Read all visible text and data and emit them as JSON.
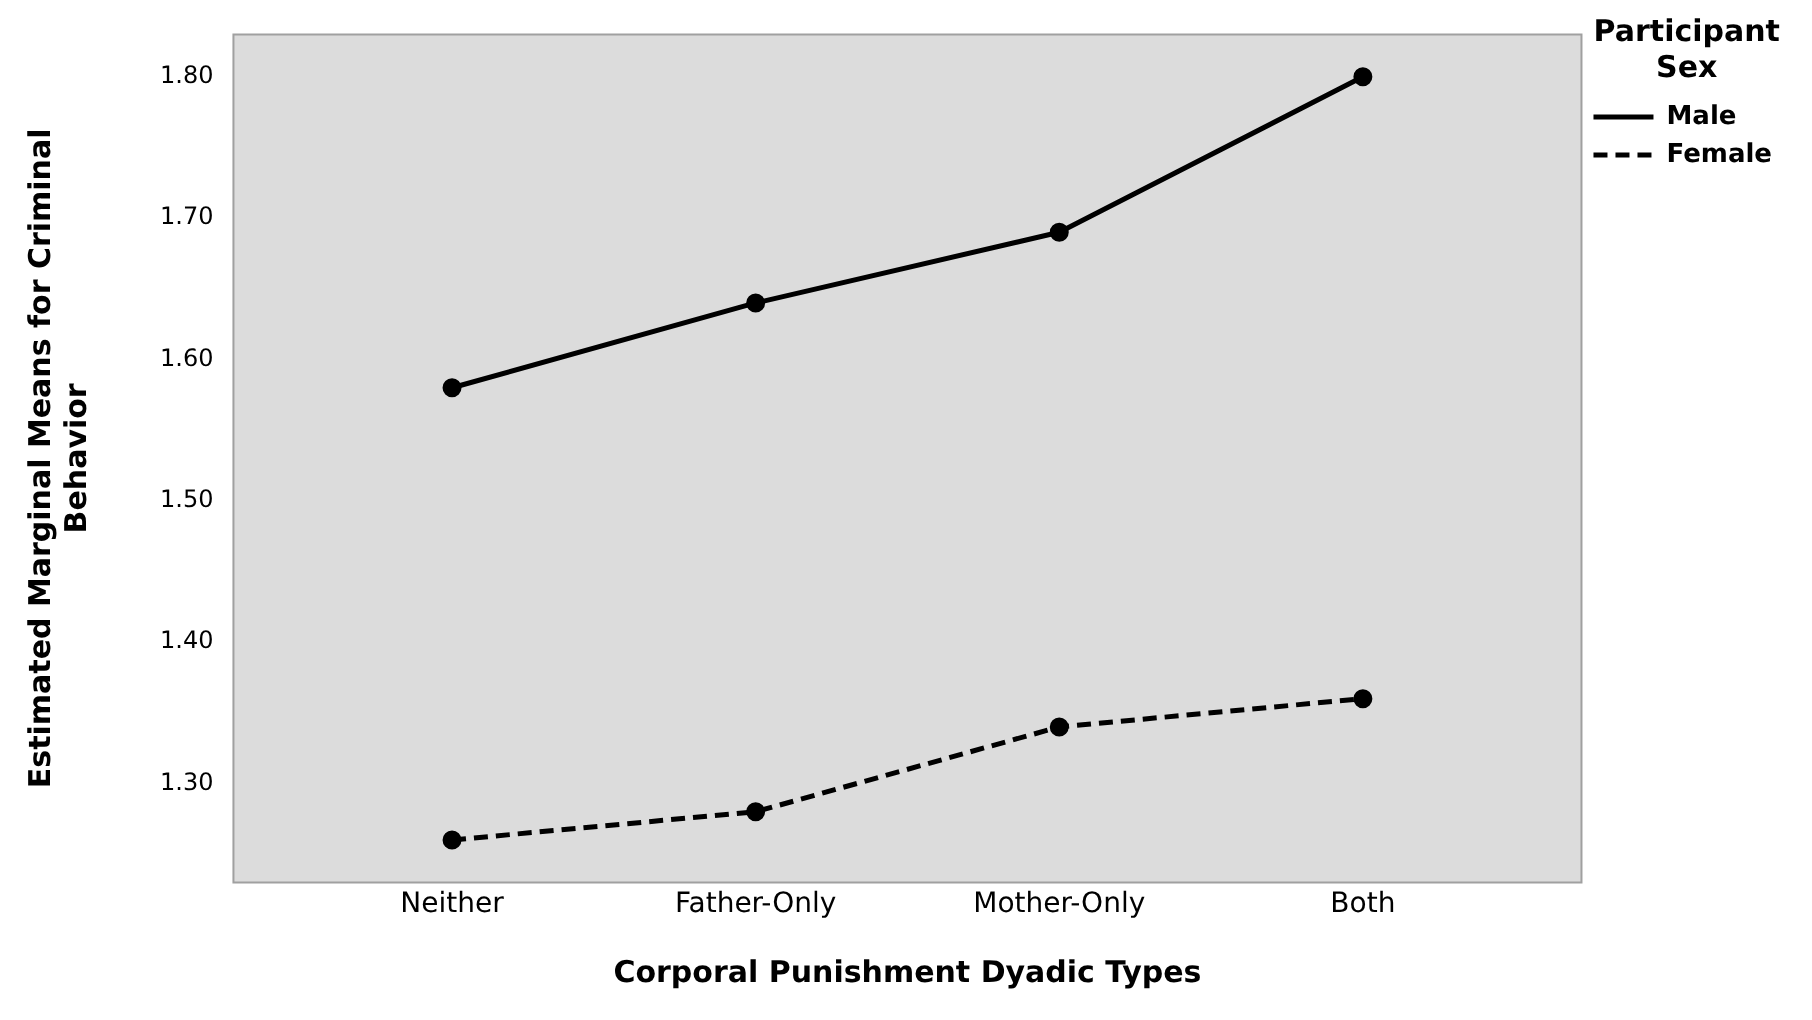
{
  "chart_data": {
    "type": "line",
    "xlabel": "Corporal Punishment Dyadic Types",
    "ylabel": "Estimated Marginal Means for Criminal Behavior",
    "legend_title": "Participant Sex",
    "categories": [
      "Neither",
      "Father-Only",
      "Mother-Only",
      "Both"
    ],
    "series": [
      {
        "name": "Male",
        "color": "#000000",
        "line_style": "solid",
        "values": [
          1.58,
          1.64,
          1.69,
          1.8
        ]
      },
      {
        "name": "Female",
        "color": "#000000",
        "line_style": "dashed",
        "values": [
          1.26,
          1.28,
          1.34,
          1.36
        ]
      }
    ],
    "ylim": [
      1.23,
      1.83
    ],
    "yticks": [
      {
        "value": 1.3,
        "label": "1.30"
      },
      {
        "value": 1.4,
        "label": "1.40"
      },
      {
        "value": 1.5,
        "label": "1.50"
      },
      {
        "value": 1.6,
        "label": "1.60"
      },
      {
        "value": 1.7,
        "label": "1.70"
      },
      {
        "value": 1.8,
        "label": "1.80"
      }
    ],
    "marker": "circle",
    "grid": false,
    "legend": "top right"
  }
}
